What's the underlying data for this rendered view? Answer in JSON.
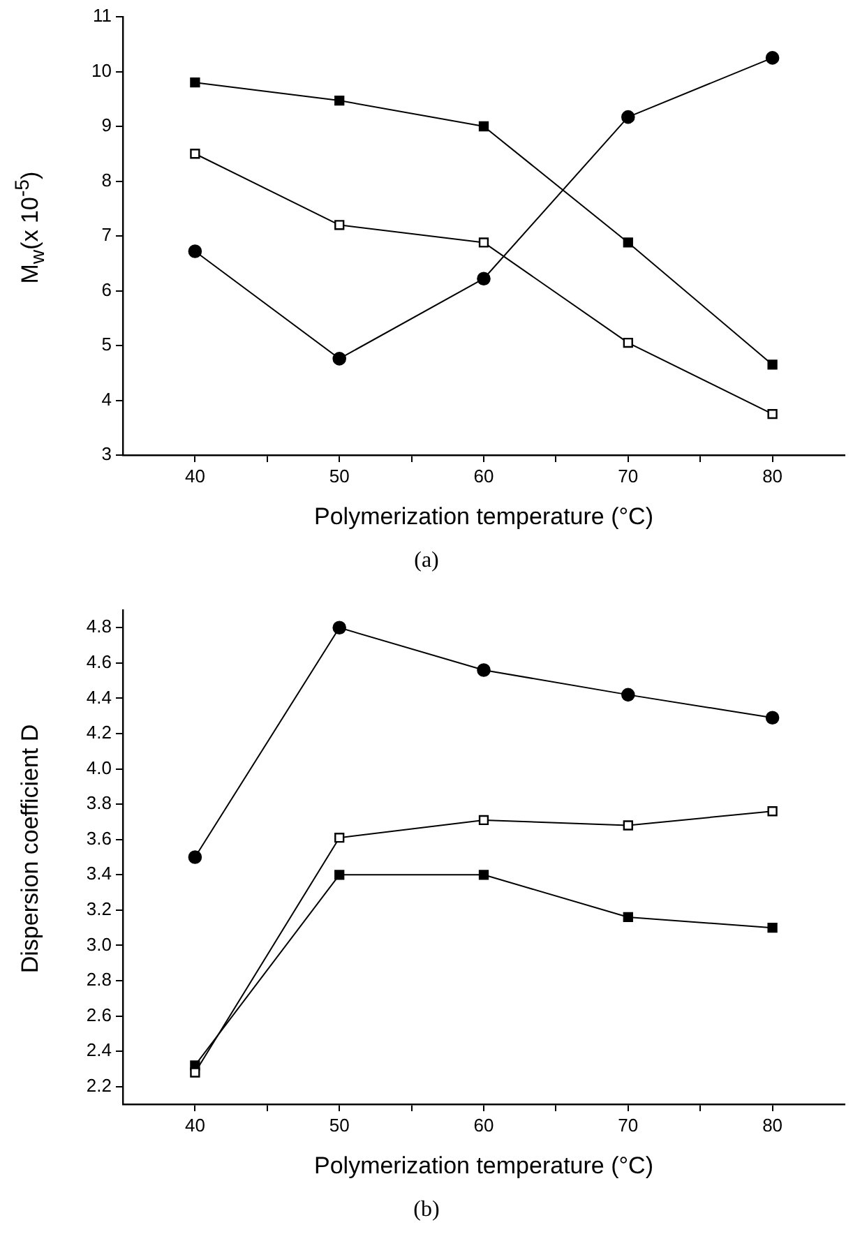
{
  "chart_data": [
    {
      "type": "line",
      "xlabel": "Polymerization temperature (°C)",
      "ylabel": "M$_{w}$(x 10$^{-5}$)",
      "annotations": [
        "(a)"
      ],
      "x": [
        40,
        50,
        60,
        70,
        80
      ],
      "xlim": [
        35,
        85
      ],
      "xticks": [
        40,
        {
          "value": 45,
          "label": null
        },
        50,
        {
          "value": 55,
          "label": null
        },
        60,
        {
          "value": 65,
          "label": null
        },
        70,
        {
          "value": 75,
          "label": null
        },
        80
      ],
      "ylim": [
        3,
        11
      ],
      "yticks": [
        3,
        4,
        5,
        6,
        7,
        8,
        9,
        10,
        11
      ],
      "grid": false,
      "legend": false,
      "line_style": "solid",
      "series": [
        {
          "color": "#000000",
          "marker": "square",
          "values": [
            9.8,
            9.47,
            9.0,
            6.88,
            4.65
          ]
        },
        {
          "color": "#ffffff",
          "marker": "square",
          "values": [
            8.5,
            7.2,
            6.88,
            5.05,
            3.75
          ]
        },
        {
          "color": "#000000",
          "marker": "circle",
          "values": [
            6.72,
            4.76,
            6.22,
            9.17,
            10.25
          ]
        }
      ]
    },
    {
      "type": "line",
      "xlabel": "Polymerization temperature (°C)",
      "ylabel": "Dispersion coefficient D",
      "annotations": [
        "(b)"
      ],
      "x": [
        40,
        50,
        60,
        70,
        80
      ],
      "xlim": [
        35,
        85
      ],
      "xticks": [
        40,
        {
          "value": 45,
          "label": null
        },
        50,
        {
          "value": 55,
          "label": null
        },
        60,
        {
          "value": 65,
          "label": null
        },
        70,
        {
          "value": 75,
          "label": null
        },
        80
      ],
      "ylim": [
        2.1,
        4.9
      ],
      "yticks": [
        2.2,
        2.4,
        2.6,
        2.8,
        {
          "value": 3,
          "label": "3.0"
        },
        3.2,
        3.4,
        3.6,
        3.8,
        {
          "value": 4,
          "label": "4.0"
        },
        4.2,
        4.4,
        4.6,
        4.8
      ],
      "grid": false,
      "legend": false,
      "line_style": "solid",
      "series": [
        {
          "color": "#000000",
          "marker": "circle",
          "values": [
            3.5,
            4.8,
            4.56,
            4.42,
            4.29
          ]
        },
        {
          "color": "#ffffff",
          "marker": "square",
          "values": [
            2.28,
            3.61,
            3.71,
            3.68,
            3.76
          ]
        },
        {
          "color": "#000000",
          "marker": "square",
          "values": [
            2.32,
            3.4,
            3.4,
            3.16,
            3.1
          ]
        }
      ]
    }
  ]
}
